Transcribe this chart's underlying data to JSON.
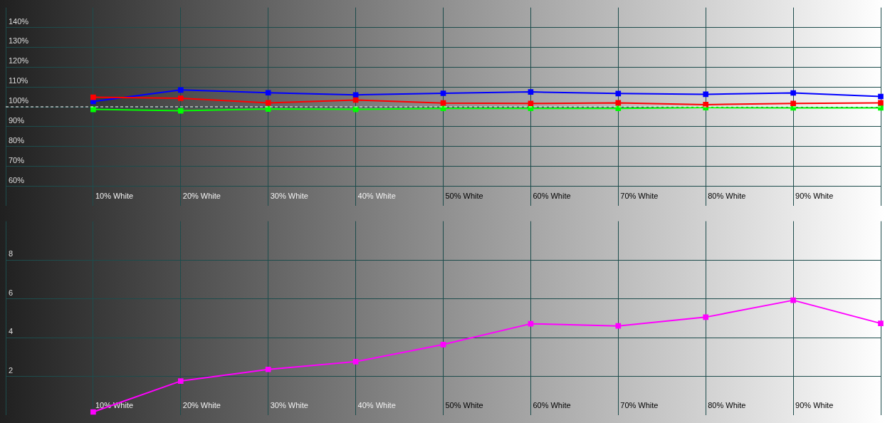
{
  "chart_data": [
    {
      "type": "line",
      "categories": [
        null,
        "10% White",
        "20% White",
        "30% White",
        "40% White",
        "50% White",
        "60% White",
        "70% White",
        "80% White",
        "90% White",
        null
      ],
      "series": [
        {
          "color": "#ff0000",
          "values": [
            null,
            104.8,
            104.3,
            102,
            103.4,
            101.9,
            101.7,
            102,
            101.1,
            101.7,
            102
          ]
        },
        {
          "color": "#00ff00",
          "values": [
            null,
            98.7,
            98,
            98.9,
            98.7,
            99.2,
            99.2,
            99.2,
            99.6,
            99.5,
            99.5
          ]
        },
        {
          "color": "#0000ff",
          "values": [
            null,
            102.7,
            108.5,
            107.1,
            106,
            106.8,
            107.5,
            106.7,
            106.3,
            107,
            105.2
          ]
        }
      ],
      "ylim": [
        50,
        150
      ],
      "yticks": [
        {
          "value": 60,
          "label": "60%"
        },
        {
          "value": 70,
          "label": "70%"
        },
        {
          "value": 80,
          "label": "80%"
        },
        {
          "value": 90,
          "label": "90%"
        },
        {
          "value": 100,
          "label": "100%"
        },
        {
          "value": 110,
          "label": "110%"
        },
        {
          "value": 120,
          "label": "120%"
        },
        {
          "value": 130,
          "label": "130%"
        },
        {
          "value": 140,
          "label": "140%"
        }
      ],
      "ref_lines": [
        {
          "axis": "y",
          "value": 100,
          "color": "#ffffff",
          "line_style": "dashed"
        }
      ],
      "grid": true,
      "marker": "square",
      "legend": false
    },
    {
      "type": "line",
      "categories": [
        null,
        "10% White",
        "20% White",
        "30% White",
        "40% White",
        "50% White",
        "60% White",
        "70% White",
        "80% White",
        "90% White",
        null
      ],
      "series": [
        {
          "color": "#ff00ff",
          "values": [
            null,
            0.18,
            1.77,
            2.37,
            2.77,
            3.65,
            4.72,
            4.61,
            5.06,
            5.93,
            4.74
          ]
        }
      ],
      "ylim": [
        0,
        10
      ],
      "yticks": [
        2,
        4,
        6,
        8
      ],
      "grid": true,
      "marker": "square",
      "legend": false
    }
  ]
}
